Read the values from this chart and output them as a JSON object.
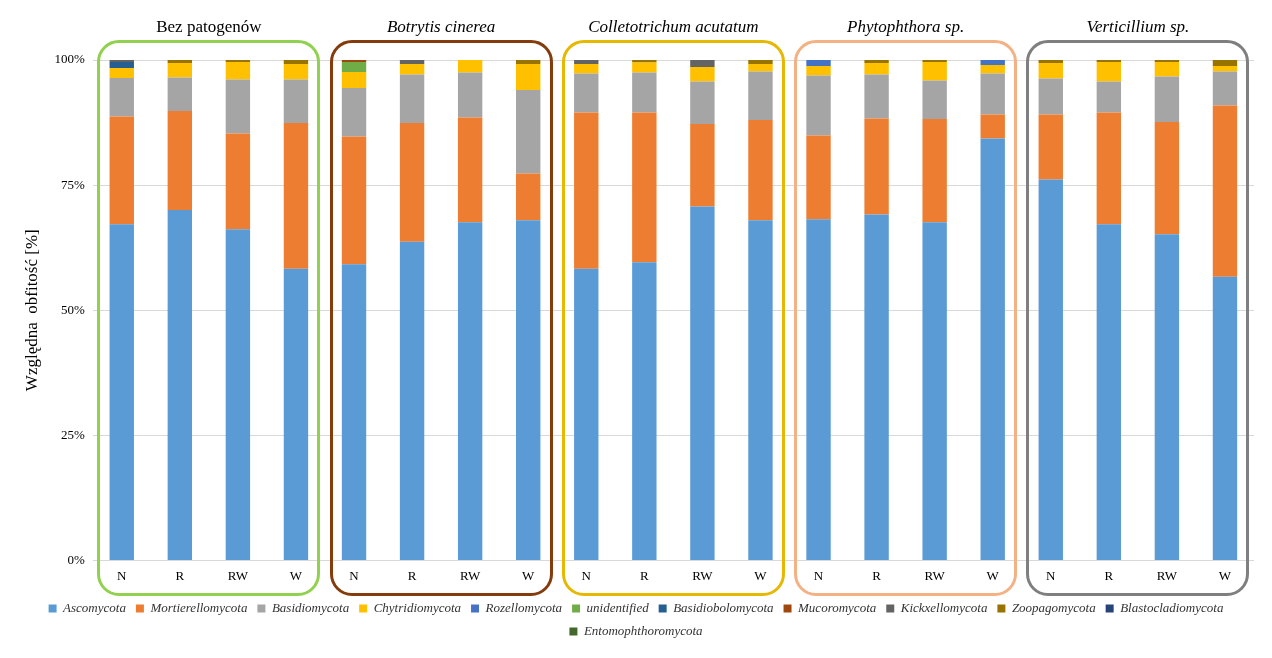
{
  "chart_data": {
    "type": "bar",
    "stacked": true,
    "categories": [
      "N",
      "R",
      "RW",
      "W",
      "N",
      "R",
      "RW",
      "W",
      "N",
      "R",
      "RW",
      "W",
      "N",
      "R",
      "RW",
      "W",
      "N",
      "R",
      "RW",
      "W"
    ],
    "ylabel": "Względna  obfitość [%]",
    "annotations": [
      "Bez patogenów",
      "Botrytis cinerea",
      "Colletotrichum acutatum",
      "Phytophthora sp.",
      "Verticillium sp."
    ],
    "ylim": [
      0,
      100
    ],
    "yticks": [
      {
        "value": 0,
        "label": "0%"
      },
      {
        "value": 25,
        "label": "25%"
      },
      {
        "value": 50,
        "label": "50%"
      },
      {
        "value": 75,
        "label": "75%"
      },
      {
        "value": 100,
        "label": "100%"
      }
    ],
    "grid": "y",
    "legend": "bottom",
    "series": [
      {
        "name": "Ascomycota",
        "color": "#5b9bd5",
        "values": [
          67.2,
          70.0,
          66.2,
          58.3,
          59.2,
          63.7,
          67.6,
          68.0,
          58.3,
          59.6,
          70.7,
          68.0,
          68.2,
          69.1,
          67.6,
          84.3,
          76.1,
          67.2,
          65.2,
          56.7
        ]
      },
      {
        "name": "Mortierellomycota",
        "color": "#ed7d31",
        "values": [
          21.5,
          19.8,
          19.1,
          29.1,
          25.5,
          23.7,
          20.9,
          9.3,
          31.2,
          29.9,
          16.5,
          20.0,
          16.7,
          19.2,
          20.6,
          4.8,
          13.0,
          22.3,
          22.4,
          34.2
        ]
      },
      {
        "name": "Basidiomycota",
        "color": "#a5a5a5",
        "values": [
          7.7,
          6.7,
          10.8,
          8.7,
          9.7,
          9.7,
          9.0,
          16.7,
          7.8,
          8.0,
          8.5,
          9.7,
          12.0,
          8.8,
          7.7,
          8.2,
          7.2,
          6.2,
          9.1,
          6.8
        ]
      },
      {
        "name": "Chytridiomycota",
        "color": "#ffc000",
        "values": [
          2.0,
          2.9,
          3.5,
          3.1,
          3.2,
          2.1,
          2.5,
          5.2,
          1.9,
          2.0,
          2.9,
          1.5,
          1.9,
          2.3,
          3.7,
          1.7,
          3.1,
          3.9,
          2.9,
          1.1
        ]
      },
      {
        "name": "Rozellomycota",
        "color": "#4472c4",
        "values": [
          0,
          0,
          0,
          0,
          0,
          0,
          0,
          0,
          0,
          0,
          0,
          0,
          1.2,
          0,
          0,
          1.0,
          0,
          0,
          0,
          0
        ]
      },
      {
        "name": "unidentified",
        "color": "#70ad47",
        "values": [
          0,
          0,
          0,
          0,
          2.0,
          0,
          0,
          0,
          0,
          0,
          0,
          0,
          0,
          0,
          0,
          0,
          0,
          0,
          0,
          0
        ]
      },
      {
        "name": "Basidiobolomycota",
        "color": "#255e91",
        "values": [
          1.2,
          0,
          0,
          0,
          0,
          0,
          0,
          0,
          0,
          0,
          0,
          0,
          0,
          0,
          0,
          0,
          0,
          0,
          0,
          0
        ]
      },
      {
        "name": "Mucoromycota",
        "color": "#9e480e",
        "values": [
          0,
          0,
          0,
          0,
          0.4,
          0,
          0,
          0,
          0,
          0,
          0,
          0,
          0,
          0,
          0,
          0,
          0,
          0,
          0,
          0
        ]
      },
      {
        "name": "Kickxellomycota",
        "color": "#636363",
        "values": [
          0.4,
          0,
          0,
          0,
          0,
          0.8,
          0,
          0,
          0.8,
          0,
          1.4,
          0,
          0,
          0,
          0,
          0,
          0,
          0,
          0,
          0
        ]
      },
      {
        "name": "Zoopagomycota",
        "color": "#997300",
        "values": [
          0,
          0.6,
          0.4,
          0.8,
          0,
          0,
          0,
          0.8,
          0,
          0.5,
          0,
          0.8,
          0,
          0.6,
          0.4,
          0,
          0.6,
          0.4,
          0.4,
          1.2
        ]
      },
      {
        "name": "Blastocladiomycota",
        "color": "#264478",
        "values": [
          0,
          0,
          0,
          0,
          0,
          0,
          0,
          0,
          0,
          0,
          0,
          0,
          0,
          0,
          0,
          0,
          0,
          0,
          0,
          0
        ]
      },
      {
        "name": "Entomophthoromycota",
        "color": "#43682b",
        "values": [
          0,
          0,
          0,
          0,
          0,
          0,
          0,
          0,
          0,
          0,
          0,
          0,
          0,
          0,
          0,
          0,
          0,
          0,
          0,
          0
        ]
      }
    ]
  }
}
